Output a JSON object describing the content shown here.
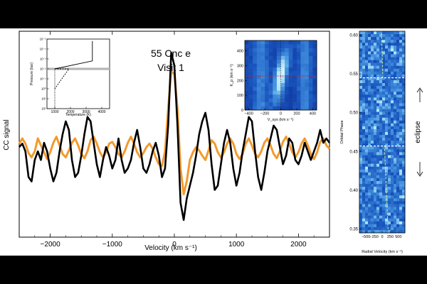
{
  "colors": {
    "bar": "#000000",
    "model": "#f29a2e",
    "observed": "#000000",
    "map_bg": "#123f9e",
    "map_hot": "#e9fbff"
  },
  "chart_data": [
    {
      "type": "line",
      "title": "55 Cnc e",
      "subtitle": "Visit 1",
      "xlabel": "Velocity (km s⁻¹)",
      "ylabel": "CC signal",
      "xlim": [
        -2500,
        2500
      ],
      "xticks": [
        -2000,
        -1000,
        0,
        1000,
        2000
      ],
      "series": [
        {
          "role": "observed",
          "x": [
            -2500,
            -2450,
            -2400,
            -2350,
            -2300,
            -2250,
            -2200,
            -2150,
            -2100,
            -2050,
            -2000,
            -1950,
            -1900,
            -1850,
            -1800,
            -1750,
            -1700,
            -1650,
            -1600,
            -1550,
            -1500,
            -1450,
            -1400,
            -1350,
            -1300,
            -1250,
            -1200,
            -1150,
            -1100,
            -1050,
            -1000,
            -950,
            -900,
            -850,
            -800,
            -750,
            -700,
            -650,
            -600,
            -550,
            -500,
            -450,
            -400,
            -350,
            -300,
            -250,
            -200,
            -150,
            -100,
            -50,
            0,
            50,
            100,
            150,
            200,
            250,
            300,
            350,
            400,
            450,
            500,
            550,
            600,
            650,
            700,
            750,
            800,
            850,
            900,
            950,
            1000,
            1050,
            1100,
            1150,
            1200,
            1250,
            1300,
            1350,
            1400,
            1450,
            1500,
            1550,
            1600,
            1650,
            1700,
            1750,
            1800,
            1850,
            1900,
            1950,
            2000,
            2050,
            2100,
            2150,
            2200,
            2250,
            2300,
            2350,
            2400,
            2450,
            2500
          ],
          "values": [
            0.1,
            0.14,
            0.05,
            -0.25,
            -0.3,
            -0.05,
            0.05,
            -0.05,
            0.15,
            0.05,
            -0.15,
            -0.3,
            -0.2,
            0.05,
            0.25,
            0.4,
            0.3,
            -0.05,
            -0.25,
            -0.2,
            0.0,
            0.25,
            0.45,
            0.4,
            0.15,
            -0.1,
            -0.25,
            -0.05,
            0.1,
            0.0,
            -0.15,
            -0.05,
            0.2,
            -0.05,
            -0.2,
            -0.15,
            -0.05,
            0.15,
            0.3,
            0.1,
            -0.15,
            -0.2,
            -0.1,
            0.05,
            0.15,
            0.0,
            -0.25,
            -0.15,
            0.35,
            1.2,
            1.05,
            0.35,
            -0.55,
            -0.75,
            -0.5,
            -0.35,
            -0.2,
            0.0,
            0.25,
            0.4,
            0.5,
            0.3,
            -0.1,
            -0.4,
            -0.35,
            -0.1,
            0.15,
            0.3,
            0.15,
            -0.15,
            -0.35,
            -0.2,
            0.05,
            0.25,
            0.45,
            0.4,
            0.05,
            -0.25,
            -0.4,
            -0.2,
            0.05,
            0.2,
            0.35,
            0.3,
            0.1,
            -0.1,
            0.0,
            0.2,
            0.15,
            -0.05,
            -0.1,
            0.0,
            0.15,
            0.05,
            -0.05,
            0.05,
            0.15,
            0.3,
            0.15,
            0.2,
            0.15
          ]
        },
        {
          "role": "model",
          "x": [
            -2500,
            -2450,
            -2400,
            -2350,
            -2300,
            -2250,
            -2200,
            -2150,
            -2100,
            -2050,
            -2000,
            -1950,
            -1900,
            -1850,
            -1800,
            -1750,
            -1700,
            -1650,
            -1600,
            -1550,
            -1500,
            -1450,
            -1400,
            -1350,
            -1300,
            -1250,
            -1200,
            -1150,
            -1100,
            -1050,
            -1000,
            -950,
            -900,
            -850,
            -800,
            -750,
            -700,
            -650,
            -600,
            -550,
            -500,
            -450,
            -400,
            -350,
            -300,
            -250,
            -200,
            -150,
            -100,
            -50,
            0,
            50,
            100,
            150,
            200,
            250,
            300,
            350,
            400,
            450,
            500,
            550,
            600,
            650,
            700,
            750,
            800,
            850,
            900,
            950,
            1000,
            1050,
            1100,
            1150,
            1200,
            1250,
            1300,
            1350,
            1400,
            1450,
            1500,
            1550,
            1600,
            1650,
            1700,
            1750,
            1800,
            1850,
            1900,
            1950,
            2000,
            2050,
            2100,
            2150,
            2200,
            2250,
            2300,
            2350,
            2400,
            2450,
            2500
          ],
          "values": [
            0.14,
            0.2,
            0.14,
            0.03,
            -0.02,
            0.05,
            0.2,
            0.12,
            0.04,
            -0.04,
            0.04,
            0.15,
            0.22,
            0.12,
            0.02,
            -0.02,
            0.06,
            0.15,
            0.2,
            0.12,
            0.02,
            -0.03,
            0.05,
            0.18,
            0.22,
            0.14,
            0.04,
            -0.02,
            0.04,
            0.14,
            0.16,
            0.1,
            0.02,
            -0.02,
            0.05,
            0.15,
            0.22,
            0.14,
            0.04,
            -0.02,
            0.03,
            0.1,
            0.14,
            0.08,
            -0.02,
            -0.1,
            -0.12,
            0.05,
            0.55,
            0.98,
            0.95,
            0.55,
            -0.15,
            -0.45,
            -0.3,
            -0.05,
            0.04,
            0.1,
            0.06,
            0.0,
            -0.05,
            0.06,
            0.18,
            0.14,
            0.04,
            -0.02,
            0.04,
            0.14,
            0.2,
            0.14,
            0.02,
            -0.04,
            0.02,
            0.14,
            0.2,
            0.12,
            0.02,
            -0.02,
            0.05,
            0.15,
            0.2,
            0.12,
            0.02,
            -0.03,
            0.05,
            0.16,
            0.22,
            0.14,
            0.04,
            -0.02,
            0.04,
            0.14,
            0.2,
            0.12,
            0.02,
            -0.04,
            0.04,
            0.16,
            0.2,
            0.12,
            0.08
          ]
        }
      ]
    },
    {
      "type": "line",
      "xlabel": "Temperature (K)",
      "ylabel": "Pressure (bar)",
      "xlim": [
        500,
        4500
      ],
      "xticks": [
        1000,
        2000,
        3000,
        4000
      ],
      "yticks": [
        "10⁻⁵",
        "10⁻⁴",
        "10⁻³",
        "10⁻²",
        "10⁻¹",
        "10⁰",
        "10¹",
        "10²"
      ],
      "ylim_log": [
        -5,
        2
      ],
      "yscale": "log",
      "yinvert": true,
      "solid_profile": [
        [
          3400,
          -4.8
        ],
        [
          3400,
          -2.8
        ],
        [
          1000,
          -2.0
        ]
      ],
      "dashed_profile": [
        [
          1000,
          -2.0
        ],
        [
          1900,
          -2.0
        ],
        [
          1000,
          0.0
        ]
      ],
      "dotted_vertical": [
        [
          1000,
          -2.0
        ],
        [
          1000,
          2.0
        ]
      ],
      "gray_band_log_pressure": -2.0
    },
    {
      "type": "heatmap",
      "xlabel": "V_sys (km s⁻¹)",
      "ylabel": "K_p (km s⁻¹)",
      "xlim": [
        -450,
        450
      ],
      "ylim": [
        0,
        470
      ],
      "xticks": [
        -400,
        -200,
        0,
        200,
        400
      ],
      "yticks": [
        0,
        100,
        200,
        300,
        400
      ],
      "peak": {
        "vsys": 0,
        "kp": 230
      },
      "marker_kp": 230,
      "marker_vsys": 0
    },
    {
      "type": "heatmap",
      "xlabel": "Radial Velocity (km s⁻¹)",
      "ylabel": "Orbital Phase",
      "xlim": [
        -700,
        700
      ],
      "ylim": [
        0.345,
        0.605
      ],
      "xticks": [
        -500,
        -250,
        0,
        250,
        500
      ],
      "yticks": [
        0.35,
        0.4,
        0.45,
        0.5,
        0.55,
        0.6
      ],
      "eclipse_boundaries": [
        0.457,
        0.545
      ],
      "annotation": "eclipse",
      "trail_pre": [
        [
          0.35,
          180
        ],
        [
          0.457,
          70
        ]
      ],
      "trail_post": [
        [
          0.545,
          20
        ],
        [
          0.605,
          -20
        ]
      ]
    }
  ]
}
